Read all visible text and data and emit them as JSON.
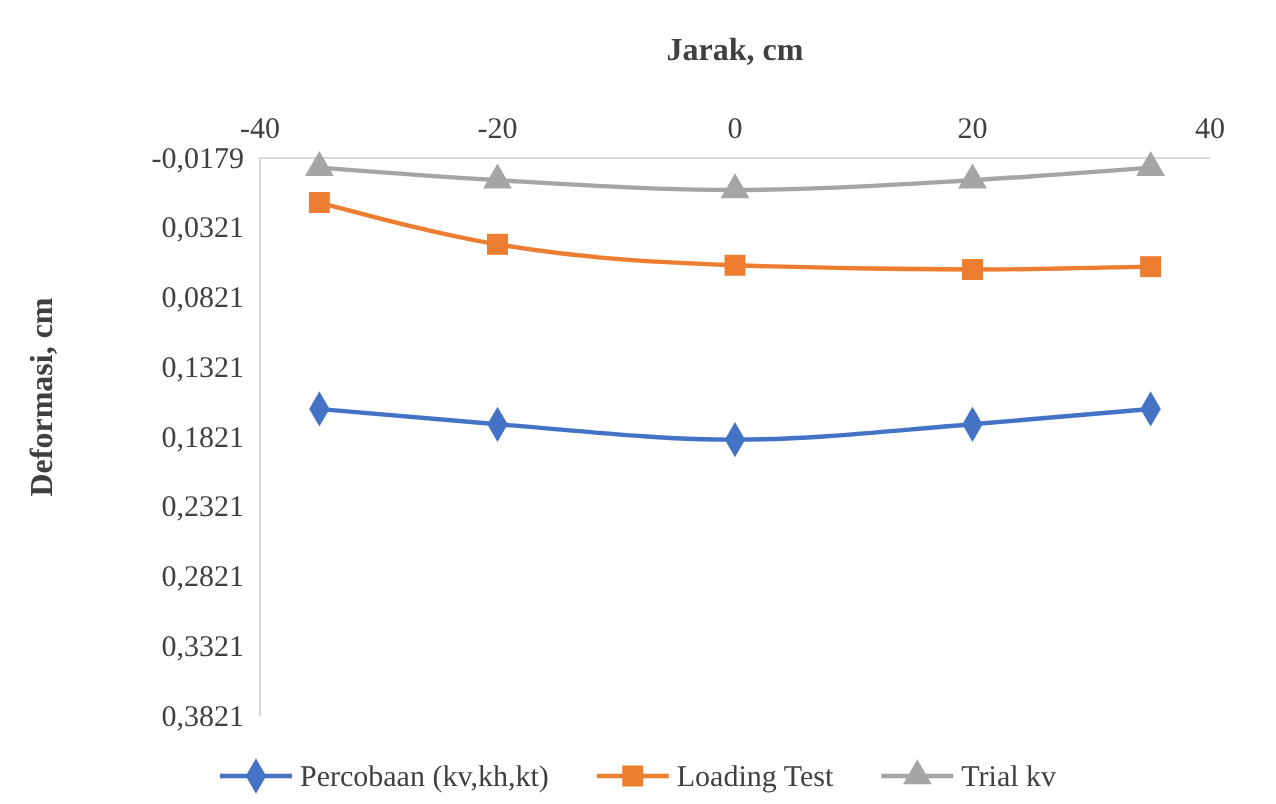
{
  "chart_data": {
    "type": "line",
    "xlabel": "Jarak, cm",
    "ylabel": "Deformasi, cm",
    "xlim": [
      -40,
      40
    ],
    "xticks": [
      -40,
      -20,
      0,
      20,
      40
    ],
    "ylim": [
      0.3821,
      -0.0179
    ],
    "yticks": [
      {
        "value": -0.0179,
        "label": "-0,0179"
      },
      {
        "value": 0.0321,
        "label": "0,0321"
      },
      {
        "value": 0.0821,
        "label": "0,0821"
      },
      {
        "value": 0.1321,
        "label": "0,1321"
      },
      {
        "value": 0.1821,
        "label": "0,1821"
      },
      {
        "value": 0.2321,
        "label": "0,2321"
      },
      {
        "value": 0.2821,
        "label": "0,2821"
      },
      {
        "value": 0.3321,
        "label": "0,3321"
      },
      {
        "value": 0.3821,
        "label": "0,3821"
      }
    ],
    "x": [
      -35,
      -20,
      0,
      20,
      35
    ],
    "grid": false,
    "legend": "bottom",
    "series": [
      {
        "name": "Percobaan (kv,kh,kt)",
        "color": "#4472c4",
        "marker": "diamond",
        "values": [
          0.162,
          0.173,
          0.184,
          0.173,
          0.162
        ]
      },
      {
        "name": "Loading Test",
        "color": "#ed7d31",
        "marker": "square",
        "values": [
          0.014,
          0.044,
          0.059,
          0.062,
          0.06
        ]
      },
      {
        "name": "Trial kv",
        "color": "#a5a5a5",
        "marker": "triangle",
        "values": [
          -0.011,
          -0.002,
          0.005,
          -0.002,
          -0.011
        ]
      }
    ]
  }
}
